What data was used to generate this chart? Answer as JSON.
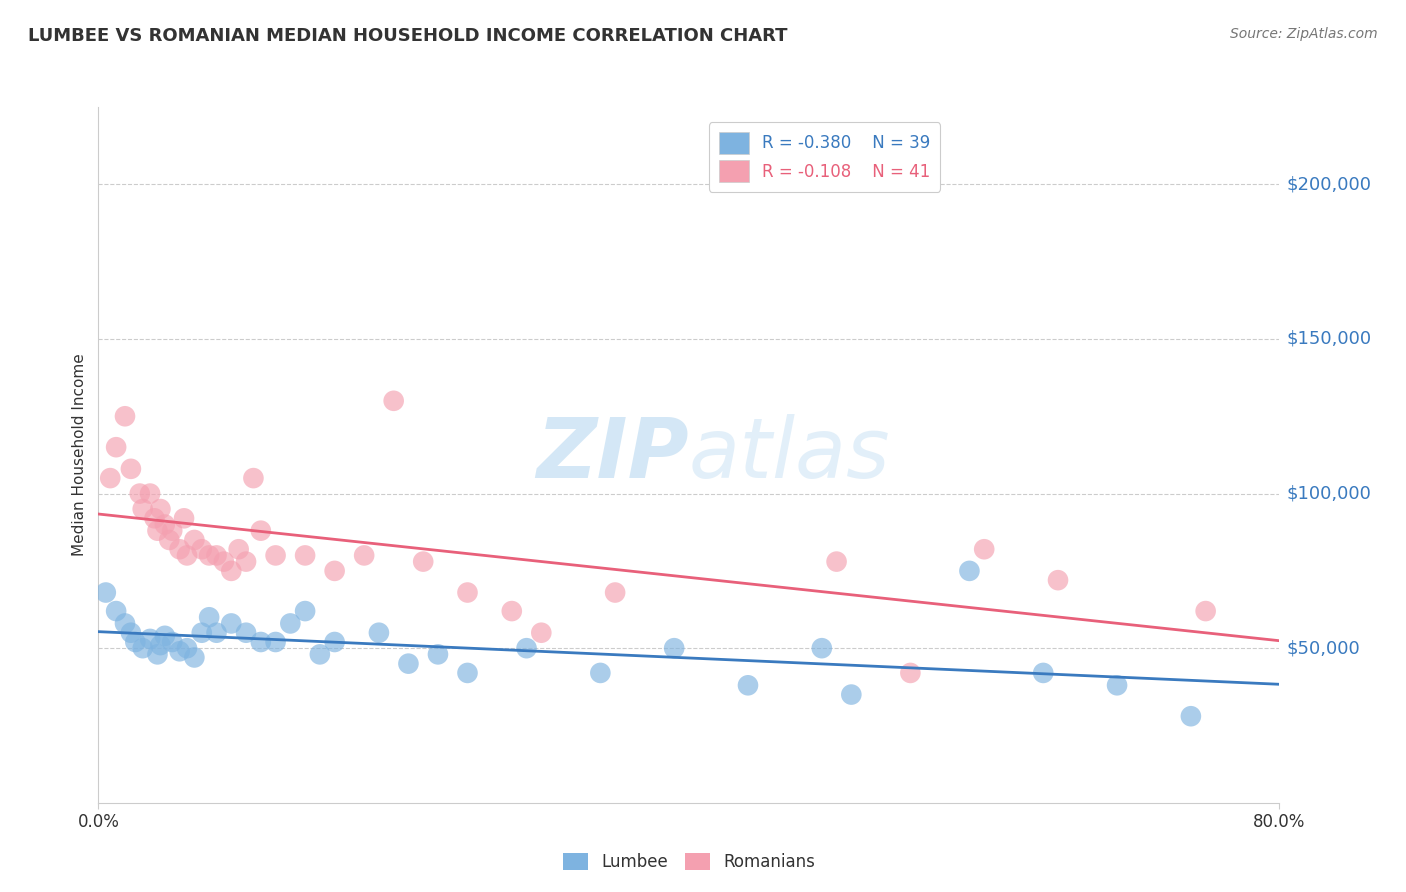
{
  "title": "LUMBEE VS ROMANIAN MEDIAN HOUSEHOLD INCOME CORRELATION CHART",
  "source": "Source: ZipAtlas.com",
  "ylabel": "Median Household Income",
  "watermark_zip": "ZIP",
  "watermark_atlas": "atlas",
  "lumbee_R": -0.38,
  "lumbee_N": 39,
  "romanian_R": -0.108,
  "romanian_N": 41,
  "lumbee_color": "#7eb3e0",
  "romanian_color": "#f4a0b0",
  "lumbee_line_color": "#3a7abf",
  "romanian_line_color": "#e8607a",
  "ytick_labels": [
    "$50,000",
    "$100,000",
    "$150,000",
    "$200,000"
  ],
  "ytick_values": [
    50000,
    100000,
    150000,
    200000
  ],
  "ylim": [
    0,
    225000
  ],
  "xlim": [
    0.0,
    0.8
  ],
  "lumbee_x": [
    0.005,
    0.012,
    0.018,
    0.022,
    0.025,
    0.03,
    0.035,
    0.04,
    0.042,
    0.045,
    0.05,
    0.055,
    0.06,
    0.065,
    0.07,
    0.075,
    0.08,
    0.09,
    0.1,
    0.11,
    0.12,
    0.13,
    0.14,
    0.15,
    0.16,
    0.19,
    0.21,
    0.23,
    0.25,
    0.29,
    0.34,
    0.39,
    0.44,
    0.49,
    0.51,
    0.59,
    0.64,
    0.69,
    0.74
  ],
  "lumbee_y": [
    68000,
    62000,
    58000,
    55000,
    52000,
    50000,
    53000,
    48000,
    51000,
    54000,
    52000,
    49000,
    50000,
    47000,
    55000,
    60000,
    55000,
    58000,
    55000,
    52000,
    52000,
    58000,
    62000,
    48000,
    52000,
    55000,
    45000,
    48000,
    42000,
    50000,
    42000,
    50000,
    38000,
    50000,
    35000,
    75000,
    42000,
    38000,
    28000
  ],
  "romanian_x": [
    0.008,
    0.012,
    0.018,
    0.022,
    0.028,
    0.03,
    0.035,
    0.038,
    0.04,
    0.042,
    0.045,
    0.048,
    0.05,
    0.055,
    0.058,
    0.06,
    0.065,
    0.07,
    0.075,
    0.08,
    0.085,
    0.09,
    0.095,
    0.1,
    0.105,
    0.11,
    0.12,
    0.14,
    0.16,
    0.18,
    0.2,
    0.22,
    0.25,
    0.28,
    0.3,
    0.35,
    0.5,
    0.55,
    0.6,
    0.65,
    0.75
  ],
  "romanian_y": [
    105000,
    115000,
    125000,
    108000,
    100000,
    95000,
    100000,
    92000,
    88000,
    95000,
    90000,
    85000,
    88000,
    82000,
    92000,
    80000,
    85000,
    82000,
    80000,
    80000,
    78000,
    75000,
    82000,
    78000,
    105000,
    88000,
    80000,
    80000,
    75000,
    80000,
    130000,
    78000,
    68000,
    62000,
    55000,
    68000,
    78000,
    42000,
    82000,
    72000,
    62000
  ]
}
